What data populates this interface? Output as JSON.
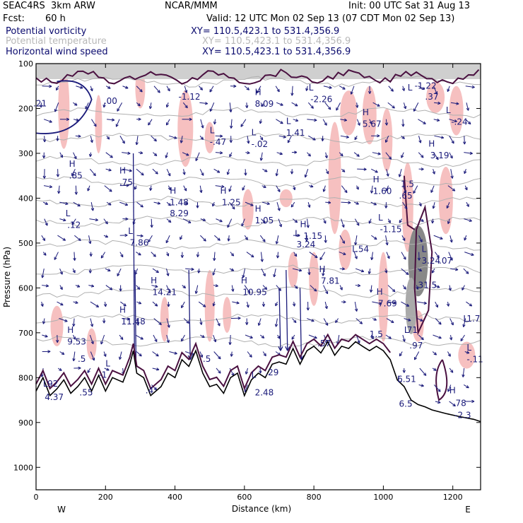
{
  "header": {
    "project": "SEAC4RS  3km ARW",
    "org": "NCAR/MMM",
    "init": "Init: 00 UTC Sat 31 Aug 13",
    "fcst_label": "Fcst:",
    "fcst_value": "60 h",
    "valid": "Valid: 12 UTC Mon 02 Sep 13 (07 CDT Mon 02 Sep 13)",
    "fields": [
      {
        "name": "Potential vorticity",
        "xy": "XY= 110.5,423.1 to 531.4,356.9",
        "color": "#0a0a6e"
      },
      {
        "name": "Potential temperature",
        "xy": "XY= 110.5,423.1 to 531.4,356.9",
        "color": "#b8b8b8"
      },
      {
        "name": "Horizontal wind speed",
        "xy": "XY= 110.5,423.1 to 531.4,356.9",
        "color": "#0a0a6e"
      }
    ]
  },
  "chart_data": {
    "type": "cross-section",
    "xlabel": "Distance (km)",
    "ylabel": "Pressure (hPa)",
    "xlim": [
      0,
      1280
    ],
    "ylim": [
      1050,
      100
    ],
    "x_ticks": [
      0,
      200,
      400,
      600,
      800,
      1000,
      1200
    ],
    "y_ticks": [
      100,
      200,
      300,
      400,
      500,
      600,
      700,
      800,
      900,
      1000
    ],
    "x_end_labels": {
      "left": "W",
      "right": "E"
    },
    "colors": {
      "pv_contour": "#4a1040",
      "wind_vector": "#1a1a7a",
      "theta": "#b0b0b0",
      "shading": "#f5b5b5"
    },
    "terrain_pressure": [
      [
        0,
        830
      ],
      [
        20,
        800
      ],
      [
        40,
        840
      ],
      [
        60,
        825
      ],
      [
        80,
        805
      ],
      [
        100,
        835
      ],
      [
        120,
        820
      ],
      [
        140,
        800
      ],
      [
        160,
        830
      ],
      [
        180,
        795
      ],
      [
        200,
        830
      ],
      [
        220,
        800
      ],
      [
        250,
        810
      ],
      [
        270,
        770
      ],
      [
        280,
        740
      ],
      [
        290,
        790
      ],
      [
        310,
        800
      ],
      [
        330,
        840
      ],
      [
        360,
        820
      ],
      [
        380,
        790
      ],
      [
        400,
        800
      ],
      [
        420,
        760
      ],
      [
        440,
        775
      ],
      [
        460,
        740
      ],
      [
        480,
        790
      ],
      [
        500,
        820
      ],
      [
        520,
        815
      ],
      [
        540,
        835
      ],
      [
        560,
        800
      ],
      [
        580,
        790
      ],
      [
        600,
        840
      ],
      [
        620,
        805
      ],
      [
        640,
        790
      ],
      [
        660,
        800
      ],
      [
        680,
        770
      ],
      [
        700,
        765
      ],
      [
        720,
        770
      ],
      [
        740,
        735
      ],
      [
        760,
        770
      ],
      [
        780,
        740
      ],
      [
        800,
        730
      ],
      [
        820,
        745
      ],
      [
        840,
        720
      ],
      [
        860,
        750
      ],
      [
        880,
        730
      ],
      [
        900,
        735
      ],
      [
        920,
        720
      ],
      [
        940,
        730
      ],
      [
        960,
        740
      ],
      [
        980,
        730
      ],
      [
        1000,
        740
      ],
      [
        1020,
        760
      ],
      [
        1040,
        805
      ],
      [
        1060,
        820
      ],
      [
        1080,
        850
      ],
      [
        1100,
        860
      ],
      [
        1120,
        865
      ],
      [
        1140,
        872
      ],
      [
        1180,
        880
      ],
      [
        1220,
        887
      ],
      [
        1260,
        893
      ],
      [
        1280,
        898
      ]
    ],
    "labels": [
      {
        "x": -8,
        "p": 195,
        "text": ".21"
      },
      {
        "x": 195,
        "p": 190,
        "text": ".00"
      },
      {
        "x": 410,
        "p": 180,
        "text": "-1.12"
      },
      {
        "x": 630,
        "p": 170,
        "text": "H"
      },
      {
        "x": 630,
        "p": 196,
        "text": "8.09"
      },
      {
        "x": 785,
        "p": 160,
        "text": "L"
      },
      {
        "x": 790,
        "p": 186,
        "text": "-2.26"
      },
      {
        "x": 1070,
        "p": 160,
        "text": "L"
      },
      {
        "x": 1090,
        "p": 156,
        "text": "-1.22"
      },
      {
        "x": 1120,
        "p": 180,
        "text": ".37"
      },
      {
        "x": 1180,
        "p": 210,
        "text": "L"
      },
      {
        "x": 1195,
        "p": 236,
        "text": "-.24"
      },
      {
        "x": 940,
        "p": 215,
        "text": "H"
      },
      {
        "x": 940,
        "p": 241,
        "text": "5.67"
      },
      {
        "x": 720,
        "p": 235,
        "text": "L"
      },
      {
        "x": 720,
        "p": 261,
        "text": "1.41"
      },
      {
        "x": 500,
        "p": 255,
        "text": "L"
      },
      {
        "x": 500,
        "p": 281,
        "text": "-.47"
      },
      {
        "x": 620,
        "p": 260,
        "text": "L"
      },
      {
        "x": 620,
        "p": 286,
        "text": "-.02"
      },
      {
        "x": 1130,
        "p": 285,
        "text": "H"
      },
      {
        "x": 1135,
        "p": 311,
        "text": "3.19"
      },
      {
        "x": 95,
        "p": 330,
        "text": "H"
      },
      {
        "x": 95,
        "p": 356,
        "text": ".85"
      },
      {
        "x": 240,
        "p": 345,
        "text": "H"
      },
      {
        "x": 240,
        "p": 371,
        "text": ".75"
      },
      {
        "x": 970,
        "p": 365,
        "text": "H"
      },
      {
        "x": 970,
        "p": 391,
        "text": "1.60"
      },
      {
        "x": 1050,
        "p": 375,
        "text": "1.5"
      },
      {
        "x": 1045,
        "p": 401,
        "text": ".65"
      },
      {
        "x": 385,
        "p": 390,
        "text": "H"
      },
      {
        "x": 385,
        "p": 416,
        "text": "1.48"
      },
      {
        "x": 530,
        "p": 390,
        "text": "H"
      },
      {
        "x": 535,
        "p": 416,
        "text": "1.25"
      },
      {
        "x": 385,
        "p": 440,
        "text": "8.29"
      },
      {
        "x": 85,
        "p": 440,
        "text": "L"
      },
      {
        "x": 90,
        "p": 466,
        "text": ".12"
      },
      {
        "x": 630,
        "p": 430,
        "text": "H"
      },
      {
        "x": 630,
        "p": 456,
        "text": "1.05"
      },
      {
        "x": 985,
        "p": 450,
        "text": "L"
      },
      {
        "x": 990,
        "p": 476,
        "text": "-1.15"
      },
      {
        "x": 760,
        "p": 465,
        "text": "H"
      },
      {
        "x": 770,
        "p": 491,
        "text": "1.15"
      },
      {
        "x": 265,
        "p": 480,
        "text": "L"
      },
      {
        "x": 270,
        "p": 506,
        "text": "7.86"
      },
      {
        "x": 745,
        "p": 485,
        "text": "L"
      },
      {
        "x": 750,
        "p": 510,
        "text": "3.24"
      },
      {
        "x": 910,
        "p": 520,
        "text": "L"
      },
      {
        "x": 920,
        "p": 520,
        "text": ".54"
      },
      {
        "x": 1110,
        "p": 520,
        "text": "L"
      },
      {
        "x": 1110,
        "p": 546,
        "text": "3.24"
      },
      {
        "x": 1160,
        "p": 546,
        "text": ".07"
      },
      {
        "x": 815,
        "p": 565,
        "text": "H"
      },
      {
        "x": 820,
        "p": 591,
        "text": "7.81"
      },
      {
        "x": 330,
        "p": 590,
        "text": "H"
      },
      {
        "x": 335,
        "p": 616,
        "text": "14.21"
      },
      {
        "x": 590,
        "p": 590,
        "text": "H"
      },
      {
        "x": 595,
        "p": 616,
        "text": "10.95"
      },
      {
        "x": 1100,
        "p": 600,
        "text": "31.5"
      },
      {
        "x": 980,
        "p": 615,
        "text": "H"
      },
      {
        "x": 985,
        "p": 641,
        "text": "7.69"
      },
      {
        "x": 240,
        "p": 655,
        "text": "H"
      },
      {
        "x": 245,
        "p": 681,
        "text": "11.48"
      },
      {
        "x": 1230,
        "p": 675,
        "text": "L"
      },
      {
        "x": 1240,
        "p": 675,
        "text": "1.7"
      },
      {
        "x": 90,
        "p": 700,
        "text": "H"
      },
      {
        "x": 90,
        "p": 726,
        "text": "9.53"
      },
      {
        "x": 1060,
        "p": 700,
        "text": "L"
      },
      {
        "x": 1060,
        "p": 700,
        "text": ".71"
      },
      {
        "x": 960,
        "p": 710,
        "text": "1.5"
      },
      {
        "x": 1075,
        "p": 735,
        "text": ".97"
      },
      {
        "x": 810,
        "p": 730,
        "text": ".57"
      },
      {
        "x": 1240,
        "p": 740,
        "text": "L"
      },
      {
        "x": 1240,
        "p": 766,
        "text": "-.11"
      },
      {
        "x": 120,
        "p": 765,
        "text": ".5"
      },
      {
        "x": 480,
        "p": 765,
        "text": ".5"
      },
      {
        "x": 200,
        "p": 775,
        "text": "L"
      },
      {
        "x": 180,
        "p": 800,
        "text": "-1"
      },
      {
        "x": 620,
        "p": 800,
        "text": "L"
      },
      {
        "x": 660,
        "p": 795,
        "text": ".29"
      },
      {
        "x": 1040,
        "p": 810,
        "text": "L"
      },
      {
        "x": 1040,
        "p": 810,
        "text": "6.51"
      },
      {
        "x": 20,
        "p": 820,
        "text": "L"
      },
      {
        "x": 25,
        "p": 820,
        "text": ".92"
      },
      {
        "x": 125,
        "p": 840,
        "text": ".55"
      },
      {
        "x": 315,
        "p": 835,
        "text": ".4"
      },
      {
        "x": 630,
        "p": 840,
        "text": "2.48"
      },
      {
        "x": 1190,
        "p": 835,
        "text": "H"
      },
      {
        "x": 25,
        "p": 850,
        "text": "4.37"
      },
      {
        "x": 1045,
        "p": 865,
        "text": "6.5"
      },
      {
        "x": 1200,
        "p": 863,
        "text": ".78"
      },
      {
        "x": 1205,
        "p": 890,
        "text": "-2.3"
      }
    ]
  }
}
